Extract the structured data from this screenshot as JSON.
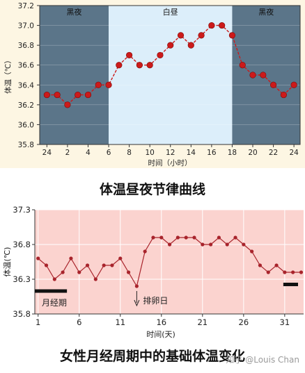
{
  "chart_data": [
    {
      "type": "line",
      "title": "体温昼夜节律曲线",
      "xlabel": "时间（小时）",
      "ylabel": "体温（℃）",
      "ylim": [
        35.8,
        37.2
      ],
      "yticks": [
        "35.8",
        "36.0",
        "36.2",
        "36.4",
        "36.6",
        "36.8",
        "37.0",
        "37.2"
      ],
      "xticks": [
        "24",
        "2",
        "4",
        "6",
        "8",
        "10",
        "12",
        "14",
        "16",
        "18",
        "20",
        "22",
        "24"
      ],
      "bands": [
        {
          "label": "黑夜",
          "from": 0,
          "to": 6,
          "color": "#5b7589"
        },
        {
          "label": "白昼",
          "from": 6,
          "to": 18,
          "color": "#dceefa"
        },
        {
          "label": "黑夜",
          "from": 18,
          "to": 24,
          "color": "#5b7589"
        }
      ],
      "series": [
        {
          "x": [
            0,
            1,
            2,
            3,
            4,
            5,
            6,
            7,
            8,
            9,
            10,
            11,
            12,
            13,
            14,
            15,
            16,
            17,
            18,
            19,
            20,
            21,
            22,
            23,
            24
          ],
          "values": [
            36.3,
            36.3,
            36.2,
            36.3,
            36.3,
            36.4,
            36.4,
            36.6,
            36.7,
            36.6,
            36.6,
            36.7,
            36.8,
            36.9,
            36.8,
            36.9,
            37.0,
            37.0,
            36.9,
            36.6,
            36.5,
            36.5,
            36.4,
            36.3,
            36.4
          ],
          "color": "#cc1a1a"
        }
      ]
    },
    {
      "type": "line",
      "title": "女性月经周期中的基础体温变化",
      "xlabel": "时间(天)",
      "ylabel": "体温(℃)",
      "ylim": [
        35.8,
        37.3
      ],
      "yticks": [
        "35.8",
        "36.3",
        "36.8",
        "37.3"
      ],
      "xticks": [
        "1",
        "6",
        "11",
        "16",
        "21",
        "26",
        "31"
      ],
      "annotations": [
        {
          "text": "月经期",
          "from_day": 1,
          "to_day": 4
        },
        {
          "text": "排卵日",
          "day": 13
        },
        {
          "text": "",
          "from_day": 31,
          "to_day": 33
        }
      ],
      "series": [
        {
          "x": [
            1,
            2,
            3,
            4,
            5,
            6,
            7,
            8,
            9,
            10,
            11,
            12,
            13,
            14,
            15,
            16,
            17,
            18,
            19,
            20,
            21,
            22,
            23,
            24,
            25,
            26,
            27,
            28,
            29,
            30,
            31,
            32,
            33
          ],
          "values": [
            36.6,
            36.5,
            36.3,
            36.4,
            36.6,
            36.4,
            36.5,
            36.3,
            36.5,
            36.5,
            36.6,
            36.4,
            36.2,
            36.7,
            36.9,
            36.9,
            36.8,
            36.9,
            36.9,
            36.9,
            36.8,
            36.8,
            36.9,
            36.8,
            36.9,
            36.8,
            36.7,
            36.5,
            36.4,
            36.5,
            36.4,
            36.4,
            36.4
          ],
          "color": "#a8242c"
        }
      ]
    }
  ],
  "captions": {
    "top": "体温昼夜节律曲线",
    "bottom": "女性月经周期中的基础体温变化"
  },
  "watermark": "知乎 @Louis Chan"
}
